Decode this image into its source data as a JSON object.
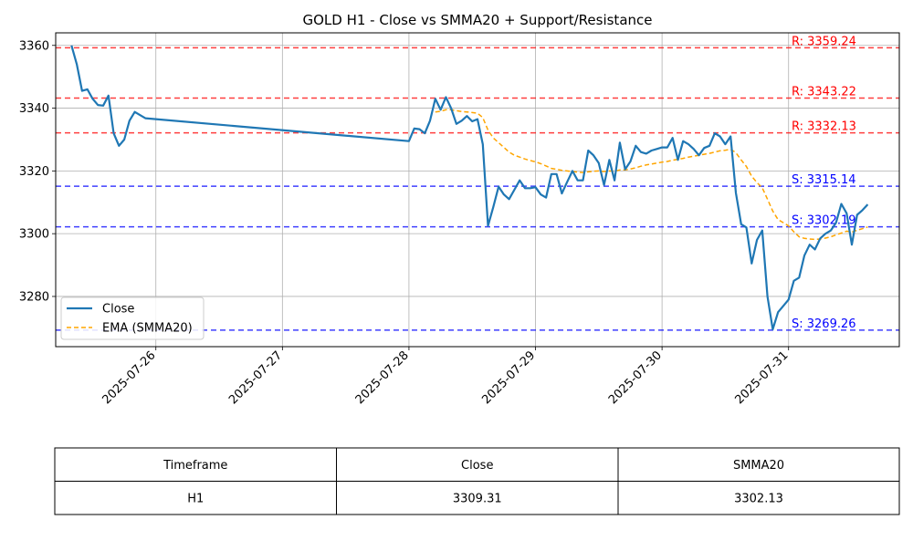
{
  "chart_data": {
    "type": "line",
    "title": "GOLD H1 - Close vs SMMA20 + Support/Resistance",
    "xlabel": "",
    "ylabel": "",
    "x_ticks": [
      "2025-07-26",
      "2025-07-27",
      "2025-07-28",
      "2025-07-29",
      "2025-07-30",
      "2025-07-31"
    ],
    "y_ticks": [
      3280,
      3300,
      3320,
      3340,
      3360
    ],
    "ylim": [
      3264,
      3364
    ],
    "xlim": [
      "2025-07-25T05:00",
      "2025-07-31T21:00"
    ],
    "grid": true,
    "legend_position": "lower-left",
    "colors": {
      "close": "#1f77b4",
      "smma": "#ffa500",
      "resistance": "#ff0000",
      "support": "#0000ff"
    },
    "series": [
      {
        "name": "Close",
        "style": "solid",
        "points": [
          [
            "2025-07-25T08:00",
            3360.0
          ],
          [
            "2025-07-25T09:00",
            3354.0
          ],
          [
            "2025-07-25T10:00",
            3345.5
          ],
          [
            "2025-07-25T11:00",
            3346.0
          ],
          [
            "2025-07-25T12:00",
            3343.0
          ],
          [
            "2025-07-25T13:00",
            3341.0
          ],
          [
            "2025-07-25T14:00",
            3340.8
          ],
          [
            "2025-07-25T15:00",
            3344.0
          ],
          [
            "2025-07-25T16:00",
            3332.0
          ],
          [
            "2025-07-25T17:00",
            3328.0
          ],
          [
            "2025-07-25T18:00",
            3330.0
          ],
          [
            "2025-07-25T19:00",
            3336.0
          ],
          [
            "2025-07-25T20:00",
            3338.8
          ],
          [
            "2025-07-25T22:00",
            3336.8
          ],
          [
            "2025-07-28T00:00",
            3329.5
          ],
          [
            "2025-07-28T01:00",
            3333.5
          ],
          [
            "2025-07-28T02:00",
            3333.3
          ],
          [
            "2025-07-28T03:00",
            3332.0
          ],
          [
            "2025-07-28T04:00",
            3336.0
          ],
          [
            "2025-07-28T05:00",
            3343.0
          ],
          [
            "2025-07-28T06:00",
            3339.5
          ],
          [
            "2025-07-28T07:00",
            3343.5
          ],
          [
            "2025-07-28T08:00",
            3340.0
          ],
          [
            "2025-07-28T09:00",
            3335.0
          ],
          [
            "2025-07-28T10:00",
            3336.0
          ],
          [
            "2025-07-28T11:00",
            3337.5
          ],
          [
            "2025-07-28T12:00",
            3335.8
          ],
          [
            "2025-07-28T13:00",
            3336.5
          ],
          [
            "2025-07-28T14:00",
            3328.5
          ],
          [
            "2025-07-28T15:00",
            3302.5
          ],
          [
            "2025-07-28T16:00",
            3308.5
          ],
          [
            "2025-07-28T17:00",
            3315.0
          ],
          [
            "2025-07-28T18:00",
            3312.5
          ],
          [
            "2025-07-28T19:00",
            3311.0
          ],
          [
            "2025-07-28T20:00",
            3314.0
          ],
          [
            "2025-07-28T21:00",
            3317.0
          ],
          [
            "2025-07-28T22:00",
            3314.5
          ],
          [
            "2025-07-28T23:00",
            3314.5
          ],
          [
            "2025-07-29T00:00",
            3314.8
          ],
          [
            "2025-07-29T01:00",
            3312.5
          ],
          [
            "2025-07-29T02:00",
            3311.5
          ],
          [
            "2025-07-29T03:00",
            3319.0
          ],
          [
            "2025-07-29T04:00",
            3319.0
          ],
          [
            "2025-07-29T05:00",
            3312.8
          ],
          [
            "2025-07-29T06:00",
            3316.5
          ],
          [
            "2025-07-29T07:00",
            3320.0
          ],
          [
            "2025-07-29T08:00",
            3317.0
          ],
          [
            "2025-07-29T09:00",
            3317.0
          ],
          [
            "2025-07-29T10:00",
            3326.5
          ],
          [
            "2025-07-29T11:00",
            3325.0
          ],
          [
            "2025-07-29T12:00",
            3322.5
          ],
          [
            "2025-07-29T13:00",
            3315.5
          ],
          [
            "2025-07-29T14:00",
            3323.5
          ],
          [
            "2025-07-29T15:00",
            3317.0
          ],
          [
            "2025-07-29T16:00",
            3329.0
          ],
          [
            "2025-07-29T17:00",
            3320.5
          ],
          [
            "2025-07-29T18:00",
            3323.0
          ],
          [
            "2025-07-29T19:00",
            3328.0
          ],
          [
            "2025-07-29T20:00",
            3326.0
          ],
          [
            "2025-07-29T21:00",
            3325.5
          ],
          [
            "2025-07-29T22:00",
            3326.5
          ],
          [
            "2025-07-29T23:00",
            3327.0
          ],
          [
            "2025-07-30T00:00",
            3327.5
          ],
          [
            "2025-07-30T01:00",
            3327.5
          ],
          [
            "2025-07-30T02:00",
            3330.5
          ],
          [
            "2025-07-30T03:00",
            3323.5
          ],
          [
            "2025-07-30T04:00",
            3329.5
          ],
          [
            "2025-07-30T05:00",
            3328.5
          ],
          [
            "2025-07-30T06:00",
            3327.0
          ],
          [
            "2025-07-30T07:00",
            3325.0
          ],
          [
            "2025-07-30T08:00",
            3327.3
          ],
          [
            "2025-07-30T09:00",
            3328.0
          ],
          [
            "2025-07-30T10:00",
            3332.0
          ],
          [
            "2025-07-30T11:00",
            3331.0
          ],
          [
            "2025-07-30T12:00",
            3328.5
          ],
          [
            "2025-07-30T13:00",
            3331.0
          ],
          [
            "2025-07-30T14:00",
            3313.0
          ],
          [
            "2025-07-30T15:00",
            3303.0
          ],
          [
            "2025-07-30T16:00",
            3302.0
          ],
          [
            "2025-07-30T17:00",
            3290.5
          ],
          [
            "2025-07-30T18:00",
            3298.0
          ],
          [
            "2025-07-30T19:00",
            3301.0
          ],
          [
            "2025-07-30T20:00",
            3280.0
          ],
          [
            "2025-07-30T21:00",
            3269.5
          ],
          [
            "2025-07-30T22:00",
            3275.0
          ],
          [
            "2025-07-30T23:00",
            3277.0
          ],
          [
            "2025-07-31T00:00",
            3279.0
          ],
          [
            "2025-07-31T01:00",
            3285.0
          ],
          [
            "2025-07-31T02:00",
            3286.0
          ],
          [
            "2025-07-31T03:00",
            3293.0
          ],
          [
            "2025-07-31T04:00",
            3296.5
          ],
          [
            "2025-07-31T05:00",
            3295.0
          ],
          [
            "2025-07-31T06:00",
            3298.5
          ],
          [
            "2025-07-31T07:00",
            3300.0
          ],
          [
            "2025-07-31T08:00",
            3301.0
          ],
          [
            "2025-07-31T09:00",
            3303.5
          ],
          [
            "2025-07-31T10:00",
            3309.5
          ],
          [
            "2025-07-31T11:00",
            3306.5
          ],
          [
            "2025-07-31T12:00",
            3296.5
          ],
          [
            "2025-07-31T13:00",
            3306.0
          ],
          [
            "2025-07-31T14:00",
            3307.5
          ],
          [
            "2025-07-31T15:00",
            3309.31
          ]
        ]
      },
      {
        "name": "EMA (SMMA20)",
        "style": "dashed",
        "points": [
          [
            "2025-07-28T05:00",
            3338.8
          ],
          [
            "2025-07-28T06:00",
            3339.0
          ],
          [
            "2025-07-28T07:00",
            3339.5
          ],
          [
            "2025-07-28T08:00",
            3339.5
          ],
          [
            "2025-07-28T09:00",
            3339.2
          ],
          [
            "2025-07-28T10:00",
            3338.9
          ],
          [
            "2025-07-28T11:00",
            3338.8
          ],
          [
            "2025-07-28T12:00",
            3338.6
          ],
          [
            "2025-07-28T13:00",
            3338.4
          ],
          [
            "2025-07-28T14:00",
            3337.0
          ],
          [
            "2025-07-28T15:00",
            3333.0
          ],
          [
            "2025-07-28T16:00",
            3330.5
          ],
          [
            "2025-07-28T17:00",
            3329.0
          ],
          [
            "2025-07-28T18:00",
            3327.5
          ],
          [
            "2025-07-28T19:00",
            3326.0
          ],
          [
            "2025-07-28T20:00",
            3325.0
          ],
          [
            "2025-07-28T21:00",
            3324.4
          ],
          [
            "2025-07-28T22:00",
            3323.8
          ],
          [
            "2025-07-28T23:00",
            3323.3
          ],
          [
            "2025-07-29T00:00",
            3322.9
          ],
          [
            "2025-07-29T01:00",
            3322.3
          ],
          [
            "2025-07-29T02:00",
            3321.6
          ],
          [
            "2025-07-29T03:00",
            3320.8
          ],
          [
            "2025-07-29T04:00",
            3320.5
          ],
          [
            "2025-07-29T05:00",
            3320.2
          ],
          [
            "2025-07-29T06:00",
            3320.0
          ],
          [
            "2025-07-29T07:00",
            3319.8
          ],
          [
            "2025-07-29T08:00",
            3319.6
          ],
          [
            "2025-07-29T09:00",
            3319.5
          ],
          [
            "2025-07-29T10:00",
            3319.7
          ],
          [
            "2025-07-29T11:00",
            3319.9
          ],
          [
            "2025-07-29T12:00",
            3320.0
          ],
          [
            "2025-07-29T13:00",
            3319.8
          ],
          [
            "2025-07-29T14:00",
            3320.0
          ],
          [
            "2025-07-29T15:00",
            3319.9
          ],
          [
            "2025-07-29T16:00",
            3320.3
          ],
          [
            "2025-07-29T17:00",
            3320.3
          ],
          [
            "2025-07-29T18:00",
            3320.6
          ],
          [
            "2025-07-29T19:00",
            3321.0
          ],
          [
            "2025-07-29T20:00",
            3321.5
          ],
          [
            "2025-07-29T21:00",
            3321.9
          ],
          [
            "2025-07-29T22:00",
            3322.2
          ],
          [
            "2025-07-29T23:00",
            3322.5
          ],
          [
            "2025-07-30T00:00",
            3322.8
          ],
          [
            "2025-07-30T01:00",
            3323.0
          ],
          [
            "2025-07-30T02:00",
            3323.4
          ],
          [
            "2025-07-30T03:00",
            3323.7
          ],
          [
            "2025-07-30T04:00",
            3324.0
          ],
          [
            "2025-07-30T05:00",
            3324.4
          ],
          [
            "2025-07-30T06:00",
            3324.7
          ],
          [
            "2025-07-30T07:00",
            3325.0
          ],
          [
            "2025-07-30T08:00",
            3325.3
          ],
          [
            "2025-07-30T09:00",
            3325.6
          ],
          [
            "2025-07-30T10:00",
            3326.0
          ],
          [
            "2025-07-30T11:00",
            3326.4
          ],
          [
            "2025-07-30T12:00",
            3326.6
          ],
          [
            "2025-07-30T13:00",
            3326.9
          ],
          [
            "2025-07-30T14:00",
            3325.8
          ],
          [
            "2025-07-30T15:00",
            3323.5
          ],
          [
            "2025-07-30T16:00",
            3321.4
          ],
          [
            "2025-07-30T17:00",
            3318.3
          ],
          [
            "2025-07-30T18:00",
            3316.3
          ],
          [
            "2025-07-30T19:00",
            3314.6
          ],
          [
            "2025-07-30T20:00",
            3311.0
          ],
          [
            "2025-07-30T21:00",
            3307.2
          ],
          [
            "2025-07-30T22:00",
            3304.5
          ],
          [
            "2025-07-30T23:00",
            3303.5
          ],
          [
            "2025-07-31T00:00",
            3302.5
          ],
          [
            "2025-07-31T01:00",
            3300.6
          ],
          [
            "2025-07-31T02:00",
            3299.0
          ],
          [
            "2025-07-31T03:00",
            3298.5
          ],
          [
            "2025-07-31T04:00",
            3298.3
          ],
          [
            "2025-07-31T05:00",
            3298.2
          ],
          [
            "2025-07-31T06:00",
            3298.3
          ],
          [
            "2025-07-31T07:00",
            3298.6
          ],
          [
            "2025-07-31T08:00",
            3299.0
          ],
          [
            "2025-07-31T09:00",
            3299.6
          ],
          [
            "2025-07-31T10:00",
            3300.2
          ],
          [
            "2025-07-31T11:00",
            3300.8
          ],
          [
            "2025-07-31T12:00",
            3300.5
          ],
          [
            "2025-07-31T13:00",
            3301.1
          ],
          [
            "2025-07-31T14:00",
            3301.6
          ],
          [
            "2025-07-31T15:00",
            3302.13
          ]
        ]
      }
    ],
    "levels": [
      {
        "kind": "resistance",
        "value": 3359.24,
        "label": "R: 3359.24"
      },
      {
        "kind": "resistance",
        "value": 3343.22,
        "label": "R: 3343.22"
      },
      {
        "kind": "resistance",
        "value": 3332.13,
        "label": "R: 3332.13"
      },
      {
        "kind": "support",
        "value": 3315.14,
        "label": "S: 3315.14"
      },
      {
        "kind": "support",
        "value": 3302.19,
        "label": "S: 3302.19"
      },
      {
        "kind": "support",
        "value": 3269.26,
        "label": "S: 3269.26"
      }
    ]
  },
  "table": {
    "headers": [
      "Timeframe",
      "Close",
      "SMMA20"
    ],
    "rows": [
      [
        "H1",
        "3309.31",
        "3302.13"
      ]
    ]
  }
}
